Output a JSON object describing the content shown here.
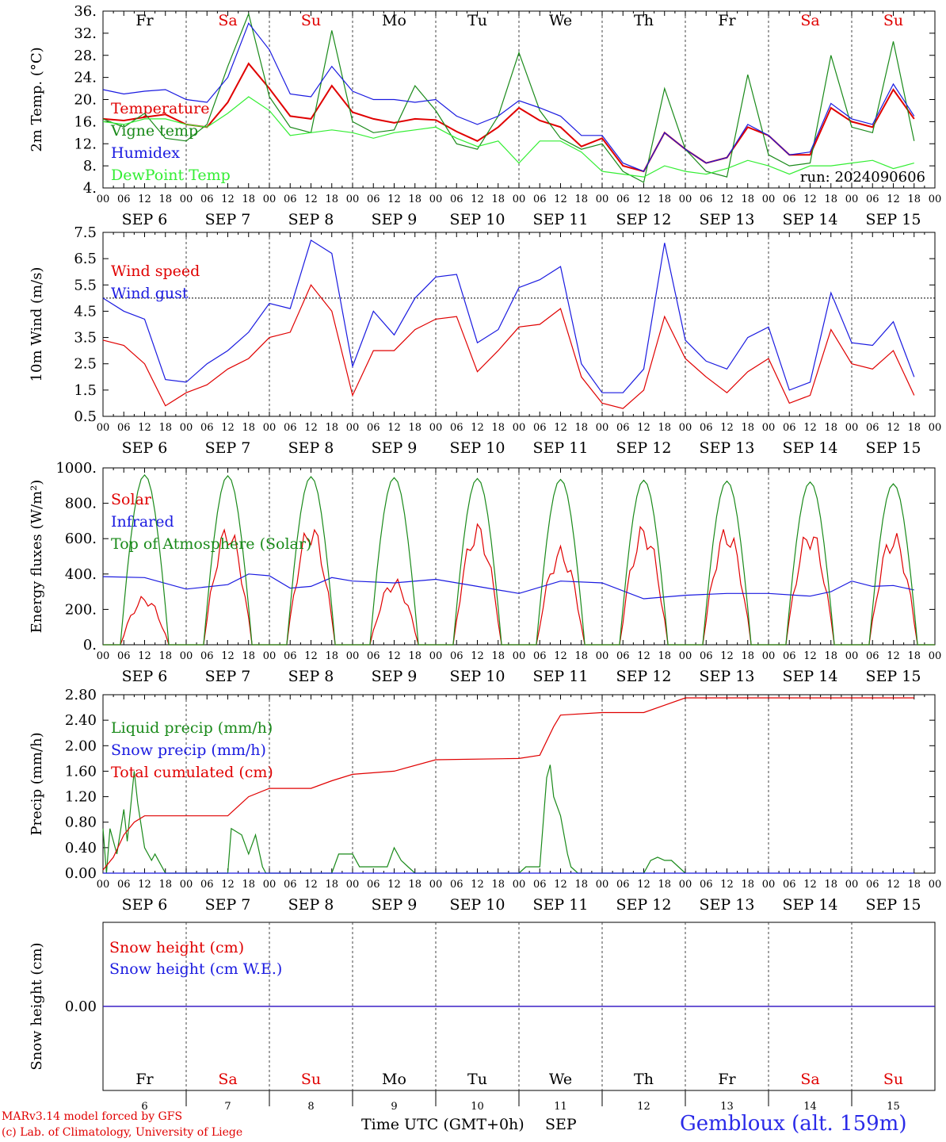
{
  "colors": {
    "red": "#e00000",
    "green": "#1a8a1a",
    "blue": "#1a1ae0",
    "lightgreen": "#33ee33",
    "black": "#000000",
    "purple": "#8a2a8a"
  },
  "days": [
    {
      "abbr": "Fr",
      "weekend": false,
      "date": "SEP  6",
      "num": "6"
    },
    {
      "abbr": "Sa",
      "weekend": true,
      "date": "SEP  7",
      "num": "7"
    },
    {
      "abbr": "Su",
      "weekend": true,
      "date": "SEP  8",
      "num": "8"
    },
    {
      "abbr": "Mo",
      "weekend": false,
      "date": "SEP  9",
      "num": "9"
    },
    {
      "abbr": "Tu",
      "weekend": false,
      "date": "SEP 10",
      "num": "10"
    },
    {
      "abbr": "We",
      "weekend": false,
      "date": "SEP 11",
      "num": "11"
    },
    {
      "abbr": "Th",
      "weekend": false,
      "date": "SEP 12",
      "num": "12"
    },
    {
      "abbr": "Fr",
      "weekend": false,
      "date": "SEP 13",
      "num": "13"
    },
    {
      "abbr": "Sa",
      "weekend": true,
      "date": "SEP 14",
      "num": "14"
    },
    {
      "abbr": "Su",
      "weekend": true,
      "date": "SEP 15",
      "num": "15"
    }
  ],
  "hour_ticks": [
    "00",
    "06",
    "12",
    "18"
  ],
  "last_tick": "00",
  "x_title": "Time UTC (GMT+0h)",
  "x_month": "SEP",
  "credits": [
    "MARv3.14 model forced by GFS",
    "(c) Lab. of Climatology, University of Liege"
  ],
  "site_label": "Gembloux (alt. 159m)",
  "chart_data": [
    {
      "type": "line",
      "id": "temp",
      "ylabel": "2m Temp. (°C)",
      "ylim": [
        4,
        36
      ],
      "yticks": [
        4,
        8,
        12,
        16,
        20,
        24,
        28,
        32,
        36
      ],
      "ytick_labels": [
        "4.",
        "8.",
        "12.",
        "16.",
        "20.",
        "24.",
        "28.",
        "32.",
        "36."
      ],
      "annotation": "run: 2024090606",
      "x_hours_start": 0,
      "series": [
        {
          "name": "Temperature",
          "color": "#e00000",
          "x": [
            0,
            6,
            12,
            18,
            24,
            30,
            36,
            42,
            48,
            54,
            60,
            66,
            72,
            78,
            84,
            90,
            96,
            102,
            108,
            114,
            120,
            126,
            132,
            138,
            144,
            150,
            156,
            162,
            168,
            174,
            180,
            186,
            192,
            198,
            204,
            210,
            216,
            222,
            228,
            234
          ],
          "values": [
            16.5,
            16.2,
            16.8,
            17.3,
            15.5,
            15.0,
            19.5,
            26.5,
            22.0,
            17.0,
            16.5,
            22.5,
            17.7,
            16.5,
            15.8,
            16.5,
            16.3,
            14.2,
            12.5,
            15.0,
            18.5,
            16.2,
            15.0,
            11.5,
            13.0,
            8.0,
            7.0,
            14.0,
            11.0,
            8.5,
            9.5,
            15.0,
            13.5,
            10.0,
            10.0,
            18.5,
            16.0,
            15.0,
            21.8,
            16.5
          ]
        },
        {
          "name": "Vigne temp",
          "color": "#1a8a1a",
          "x": [
            0,
            6,
            12,
            18,
            24,
            30,
            36,
            42,
            48,
            54,
            60,
            66,
            72,
            78,
            84,
            90,
            96,
            102,
            108,
            114,
            120,
            126,
            132,
            138,
            144,
            150,
            156,
            162,
            168,
            174,
            180,
            186,
            192,
            198,
            204,
            210,
            216,
            222,
            228,
            234
          ],
          "values": [
            16.5,
            15.0,
            17.5,
            13.0,
            12.5,
            15.5,
            26.0,
            35.5,
            20.5,
            15.0,
            14.0,
            32.5,
            16.0,
            14.0,
            14.5,
            22.5,
            18.0,
            12.0,
            11.0,
            17.0,
            28.5,
            18.0,
            13.0,
            11.0,
            12.0,
            7.0,
            5.0,
            22.0,
            11.0,
            7.0,
            6.0,
            24.5,
            10.0,
            8.0,
            8.5,
            28.0,
            15.0,
            14.0,
            30.5,
            12.5
          ]
        },
        {
          "name": "Humidex",
          "color": "#1a1ae0",
          "x": [
            0,
            6,
            12,
            18,
            24,
            30,
            36,
            42,
            48,
            54,
            60,
            66,
            72,
            78,
            84,
            90,
            96,
            102,
            108,
            114,
            120,
            126,
            132,
            138,
            144,
            150,
            156,
            162,
            168,
            174,
            180,
            186,
            192,
            198,
            204,
            210,
            216,
            222,
            228,
            234
          ],
          "values": [
            21.8,
            21.0,
            21.5,
            21.8,
            20.0,
            19.5,
            24.0,
            33.8,
            29.0,
            21.0,
            20.5,
            26.0,
            21.5,
            20.0,
            20.0,
            19.5,
            20.0,
            17.0,
            15.5,
            17.0,
            19.8,
            18.5,
            17.0,
            13.5,
            13.5,
            8.5,
            7.0,
            14.0,
            11.0,
            8.5,
            9.5,
            15.5,
            13.5,
            10.0,
            10.5,
            19.3,
            16.5,
            15.5,
            22.8,
            17.0
          ]
        },
        {
          "name": "DewPoint Temp",
          "color": "#33ee33",
          "x": [
            0,
            6,
            12,
            18,
            24,
            30,
            36,
            42,
            48,
            54,
            60,
            66,
            72,
            78,
            84,
            90,
            96,
            102,
            108,
            114,
            120,
            126,
            132,
            138,
            144,
            150,
            156,
            162,
            168,
            174,
            180,
            186,
            192,
            198,
            204,
            210,
            216,
            222,
            228,
            234
          ],
          "values": [
            16.0,
            15.5,
            16.5,
            16.5,
            15.5,
            15.0,
            17.5,
            20.5,
            18.0,
            13.5,
            14.0,
            14.5,
            14.0,
            13.0,
            14.0,
            14.5,
            15.0,
            13.0,
            11.5,
            12.5,
            8.5,
            12.5,
            12.5,
            10.5,
            7.0,
            6.5,
            6.0,
            8.0,
            7.0,
            6.5,
            7.5,
            9.0,
            8.0,
            6.5,
            8.0,
            8.0,
            8.5,
            9.0,
            7.5,
            8.5
          ]
        }
      ]
    },
    {
      "type": "line",
      "id": "wind",
      "ylabel": "10m Wind (m/s)",
      "ylim": [
        0.5,
        7.5
      ],
      "yticks": [
        0.5,
        1.5,
        2.5,
        3.5,
        4.5,
        5.5,
        6.5,
        7.5
      ],
      "ytick_labels": [
        "0.5",
        "1.5",
        "2.5",
        "3.5",
        "4.5",
        "5.5",
        "6.5",
        "7.5"
      ],
      "reference_line": 5,
      "series": [
        {
          "name": "Wind speed",
          "color": "#e00000",
          "x": [
            0,
            6,
            12,
            18,
            24,
            30,
            36,
            42,
            48,
            54,
            60,
            66,
            72,
            78,
            84,
            90,
            96,
            102,
            108,
            114,
            120,
            126,
            132,
            138,
            144,
            150,
            156,
            162,
            168,
            174,
            180,
            186,
            192,
            198,
            204,
            210,
            216,
            222,
            228,
            234
          ],
          "values": [
            3.4,
            3.2,
            2.5,
            0.9,
            1.4,
            1.7,
            2.3,
            2.7,
            3.5,
            3.7,
            5.5,
            4.5,
            1.3,
            3.0,
            3.0,
            3.8,
            4.2,
            4.3,
            2.2,
            3.0,
            3.9,
            4.0,
            4.6,
            2.0,
            1.0,
            0.8,
            1.5,
            4.3,
            2.7,
            2.0,
            1.4,
            2.2,
            2.7,
            1.0,
            1.3,
            3.8,
            2.5,
            2.3,
            3.0,
            1.3
          ]
        },
        {
          "name": "Wind gust",
          "color": "#1a1ae0",
          "x": [
            0,
            6,
            12,
            18,
            24,
            30,
            36,
            42,
            48,
            54,
            60,
            66,
            72,
            78,
            84,
            90,
            96,
            102,
            108,
            114,
            120,
            126,
            132,
            138,
            144,
            150,
            156,
            162,
            168,
            174,
            180,
            186,
            192,
            198,
            204,
            210,
            216,
            222,
            228,
            234
          ],
          "values": [
            5.0,
            4.5,
            4.2,
            1.9,
            1.8,
            2.5,
            3.0,
            3.7,
            4.8,
            4.6,
            7.2,
            6.7,
            2.4,
            4.5,
            3.6,
            5.0,
            5.8,
            5.9,
            3.3,
            3.8,
            5.4,
            5.7,
            6.2,
            2.5,
            1.4,
            1.4,
            2.3,
            7.1,
            3.4,
            2.6,
            2.3,
            3.5,
            3.9,
            1.5,
            1.8,
            5.2,
            3.3,
            3.2,
            4.1,
            2.0
          ]
        }
      ]
    },
    {
      "type": "line",
      "id": "energy",
      "ylabel": "Energy fluxes (W/m²)",
      "ylim": [
        0,
        1000
      ],
      "yticks": [
        0,
        200,
        400,
        600,
        800,
        1000
      ],
      "ytick_labels": [
        "0.",
        "200.",
        "400.",
        "600.",
        "800.",
        "1000."
      ],
      "series": [
        {
          "name": "Solar",
          "color": "#e00000",
          "daily_peaks": [
            280,
            690,
            700,
            380,
            700,
            560,
            690,
            680,
            675,
            650
          ]
        },
        {
          "name": "Infrared",
          "color": "#1a1ae0",
          "x": [
            0,
            12,
            24,
            36,
            42,
            48,
            54,
            60,
            66,
            72,
            84,
            96,
            108,
            120,
            132,
            144,
            156,
            168,
            180,
            192,
            204,
            210,
            216,
            222,
            228,
            234
          ],
          "values": [
            385,
            380,
            315,
            340,
            400,
            390,
            320,
            330,
            380,
            360,
            350,
            370,
            330,
            290,
            360,
            350,
            260,
            280,
            290,
            290,
            275,
            300,
            360,
            330,
            335,
            310
          ]
        },
        {
          "name": "Top of Atmosphere (Solar)",
          "color": "#1a8a1a",
          "daily_peaks": [
            960,
            955,
            950,
            945,
            940,
            935,
            930,
            925,
            920,
            910
          ]
        }
      ]
    },
    {
      "type": "line",
      "id": "precip",
      "ylabel": "Precip (mm/h)",
      "ylim": [
        0,
        2.8
      ],
      "yticks": [
        0,
        0.4,
        0.8,
        1.2,
        1.6,
        2.0,
        2.4,
        2.8
      ],
      "ytick_labels": [
        "0.00",
        "0.40",
        "0.80",
        "1.20",
        "1.60",
        "2.00",
        "2.40",
        "2.80"
      ],
      "series": [
        {
          "name": "Liquid precip (mm/h)",
          "color": "#1a8a1a",
          "x": [
            0,
            1,
            2,
            4,
            6,
            7,
            9,
            10,
            12,
            14,
            15,
            18,
            36,
            37,
            40,
            42,
            44,
            46,
            47,
            48,
            66,
            68,
            70,
            72,
            74,
            78,
            80,
            82,
            84,
            86,
            88,
            90,
            96,
            120,
            122,
            126,
            128,
            129,
            130,
            132,
            134,
            135,
            137,
            140,
            144,
            150,
            156,
            158,
            160,
            162,
            164,
            166,
            168
          ],
          "values": [
            0.7,
            0.0,
            0.7,
            0.3,
            1.0,
            0.5,
            1.6,
            1.1,
            0.4,
            0.2,
            0.3,
            0.0,
            0.0,
            0.7,
            0.6,
            0.3,
            0.6,
            0.1,
            0.0,
            0.0,
            0.0,
            0.3,
            0.3,
            0.3,
            0.1,
            0.1,
            0.1,
            0.1,
            0.4,
            0.2,
            0.1,
            0.0,
            0.0,
            0.0,
            0.1,
            0.1,
            1.5,
            1.7,
            1.2,
            0.9,
            0.3,
            0.1,
            0.0,
            0.0,
            0.0,
            0.0,
            0.0,
            0.2,
            0.25,
            0.2,
            0.2,
            0.1,
            0.0
          ]
        },
        {
          "name": "Snow precip (mm/h)",
          "color": "#1a1ae0",
          "x": [
            0,
            234
          ],
          "values": [
            0,
            0
          ]
        },
        {
          "name": "Total cumulated (cm)",
          "color": "#e00000",
          "x": [
            0,
            3,
            6,
            9,
            12,
            18,
            24,
            36,
            42,
            48,
            60,
            66,
            72,
            84,
            96,
            120,
            126,
            130,
            132,
            144,
            156,
            168,
            234
          ],
          "values": [
            0.05,
            0.25,
            0.6,
            0.8,
            0.9,
            0.9,
            0.9,
            0.9,
            1.2,
            1.33,
            1.33,
            1.45,
            1.55,
            1.6,
            1.78,
            1.8,
            1.85,
            2.3,
            2.48,
            2.52,
            2.52,
            2.75,
            2.75
          ]
        }
      ]
    },
    {
      "type": "line",
      "id": "snow",
      "ylabel": "Snow height (cm)",
      "ylim": [
        -1,
        1
      ],
      "yticks": [
        0
      ],
      "ytick_labels": [
        "0.00"
      ],
      "series": [
        {
          "name": "Snow height (cm)",
          "color": "#e00000",
          "x": [
            0,
            240
          ],
          "values": [
            0,
            0
          ]
        },
        {
          "name": "Snow height (cm W.E.)",
          "color": "#1a1ae0",
          "x": [
            0,
            240
          ],
          "values": [
            0,
            0
          ]
        }
      ]
    }
  ]
}
